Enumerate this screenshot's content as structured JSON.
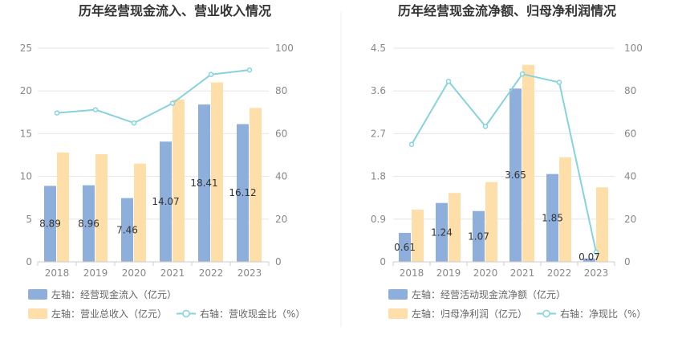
{
  "colors": {
    "bar_primary": "#8eaedc",
    "bar_secondary": "#fedfa9",
    "line": "#87d3dc",
    "grid": "#e6e6e6",
    "axis": "#cccccc",
    "divider": "#eeeeee"
  },
  "chart_data": [
    {
      "type": "bar",
      "title": "历年经营现金流入、营业收入情况",
      "categories": [
        "2018",
        "2019",
        "2020",
        "2021",
        "2022",
        "2023"
      ],
      "y_left": {
        "range": [
          0,
          25
        ],
        "ticks": [
          "0",
          "5",
          "10",
          "15",
          "20",
          "25"
        ]
      },
      "y_right": {
        "range": [
          0,
          100
        ],
        "ticks": [
          "0",
          "20",
          "40",
          "60",
          "80",
          "100"
        ]
      },
      "series": [
        {
          "name": "左轴：经营现金流入（亿元）",
          "axis": "left",
          "kind": "bar",
          "values": [
            8.89,
            8.96,
            7.46,
            14.07,
            18.41,
            16.12
          ],
          "labels": [
            "8.89",
            "8.96",
            "7.46",
            "14.07",
            "18.41",
            "16.12"
          ]
        },
        {
          "name": "左轴：营业总收入（亿元）",
          "axis": "left",
          "kind": "bar",
          "values": [
            12.8,
            12.6,
            11.5,
            19.0,
            21.0,
            18.0
          ]
        },
        {
          "name": "右轴：营收现金比（%）",
          "axis": "right",
          "kind": "line",
          "values": [
            69.7,
            71.2,
            65.0,
            74.2,
            87.7,
            89.8
          ]
        }
      ],
      "legend_placement": "bottom-left"
    },
    {
      "type": "bar",
      "title": "历年经营现金流净额、归母净利润情况",
      "categories": [
        "2018",
        "2019",
        "2020",
        "2021",
        "2022",
        "2023"
      ],
      "y_left": {
        "range": [
          0,
          4.5
        ],
        "ticks": [
          "0",
          "0.9",
          "1.8",
          "2.7",
          "3.6",
          "4.5"
        ]
      },
      "y_right": {
        "range": [
          0,
          100
        ],
        "ticks": [
          "0",
          "20",
          "40",
          "60",
          "80",
          "100"
        ]
      },
      "series": [
        {
          "name": "左轴：经营活动现金流净额（亿元）",
          "axis": "left",
          "kind": "bar",
          "values": [
            0.61,
            1.24,
            1.07,
            3.65,
            1.85,
            0.07
          ],
          "labels": [
            "0.61",
            "1.24",
            "1.07",
            "3.65",
            "1.85",
            "0.07"
          ]
        },
        {
          "name": "左轴：归母净利润（亿元）",
          "axis": "left",
          "kind": "bar",
          "values": [
            1.1,
            1.45,
            1.68,
            4.15,
            2.2,
            1.57
          ]
        },
        {
          "name": "右轴：净现比（%）",
          "axis": "right",
          "kind": "line",
          "values": [
            55.0,
            84.5,
            63.4,
            87.9,
            84.0,
            4.5
          ]
        }
      ],
      "legend_placement": "bottom-left"
    }
  ]
}
